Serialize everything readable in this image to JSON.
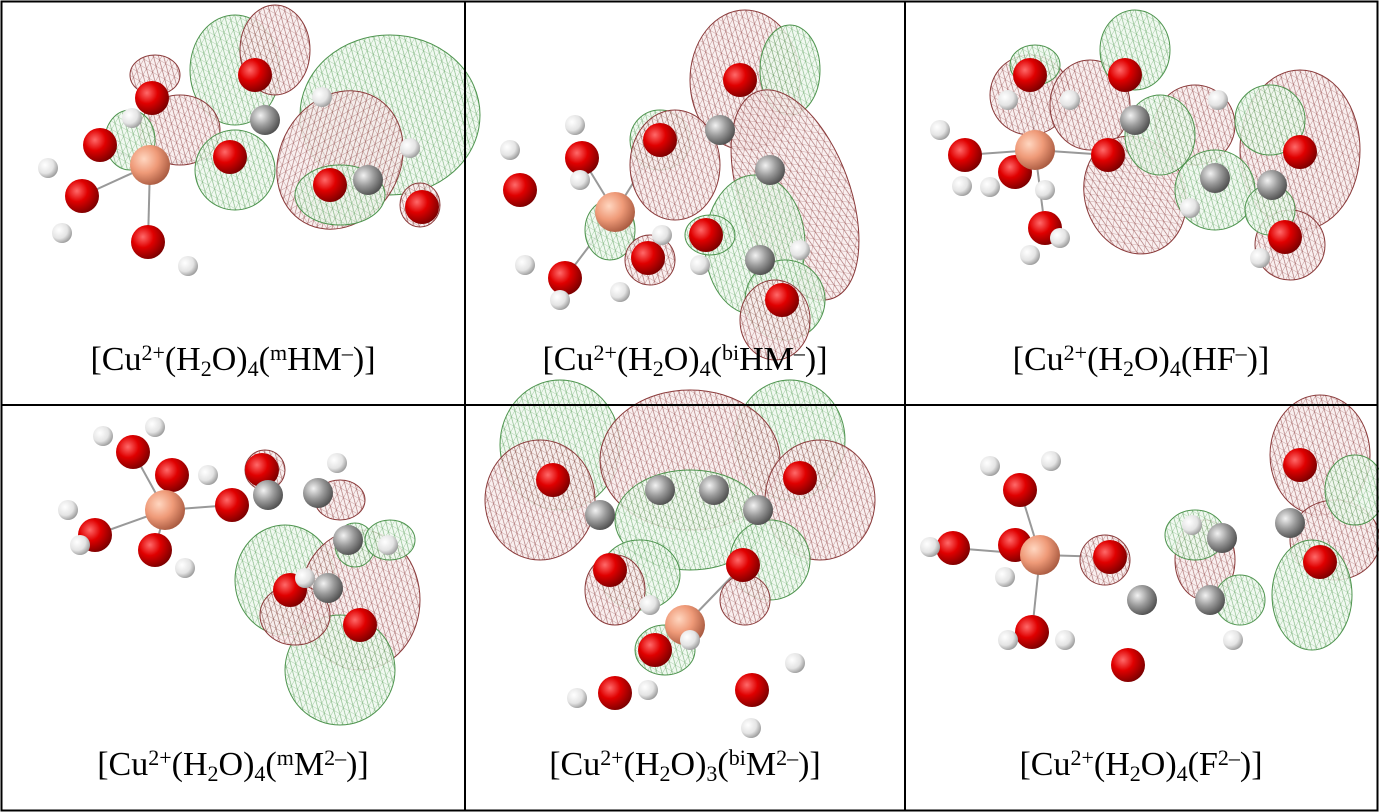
{
  "cells": [
    {
      "label": [
        {
          "text": "[Cu"
        },
        {
          "sup": "2+"
        },
        {
          "text": "(H"
        },
        {
          "sub": "2"
        },
        {
          "text": "O)"
        },
        {
          "sub": "4"
        },
        {
          "text": "("
        },
        {
          "sup": "m"
        },
        {
          "text": "HM"
        },
        {
          "sup": "–"
        },
        {
          "text": ")]"
        }
      ]
    },
    {
      "label": [
        {
          "text": "[Cu"
        },
        {
          "sup": "2+"
        },
        {
          "text": "(H"
        },
        {
          "sub": "2"
        },
        {
          "text": "O)"
        },
        {
          "sub": "4"
        },
        {
          "text": "("
        },
        {
          "sup": "bi"
        },
        {
          "text": "HM"
        },
        {
          "sup": "–"
        },
        {
          "text": ")]"
        }
      ]
    },
    {
      "label": [
        {
          "text": "[Cu"
        },
        {
          "sup": "2+"
        },
        {
          "text": "(H"
        },
        {
          "sub": "2"
        },
        {
          "text": "O)"
        },
        {
          "sub": "4"
        },
        {
          "text": "(HF"
        },
        {
          "sup": "–"
        },
        {
          "text": ")]"
        }
      ]
    },
    {
      "label": [
        {
          "text": "[Cu"
        },
        {
          "sup": "2+"
        },
        {
          "text": "(H"
        },
        {
          "sub": "2"
        },
        {
          "text": "O)"
        },
        {
          "sub": "4"
        },
        {
          "text": "("
        },
        {
          "sup": "m"
        },
        {
          "text": "M"
        },
        {
          "sup": "2–"
        },
        {
          "text": ")]"
        }
      ]
    },
    {
      "label": [
        {
          "text": "[Cu"
        },
        {
          "sup": "2+"
        },
        {
          "text": "(H"
        },
        {
          "sub": "2"
        },
        {
          "text": "O)"
        },
        {
          "sub": "3"
        },
        {
          "text": "("
        },
        {
          "sup": "bi"
        },
        {
          "text": "M"
        },
        {
          "sup": "2–"
        },
        {
          "text": ")]"
        }
      ]
    },
    {
      "label": [
        {
          "text": "[Cu"
        },
        {
          "sup": "2+"
        },
        {
          "text": "(H"
        },
        {
          "sub": "2"
        },
        {
          "text": "O)"
        },
        {
          "sub": "4"
        },
        {
          "text": "(F"
        },
        {
          "sup": "2–"
        },
        {
          "text": ")]"
        }
      ]
    }
  ]
}
